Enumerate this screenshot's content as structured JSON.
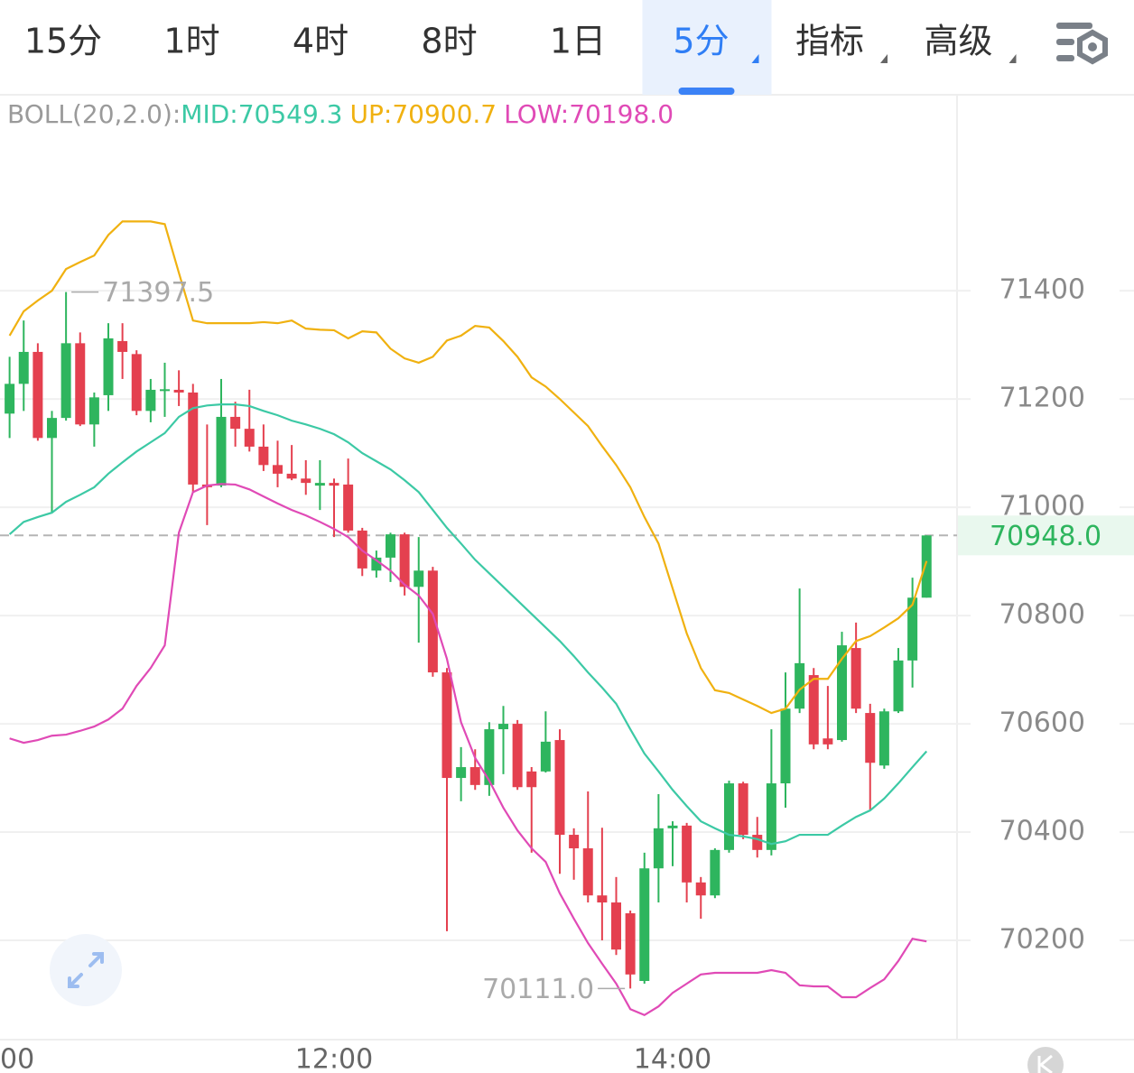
{
  "toolbar": {
    "tabs": [
      {
        "label": "15分",
        "active": false,
        "dropdown": false
      },
      {
        "label": "1时",
        "active": false,
        "dropdown": false
      },
      {
        "label": "4时",
        "active": false,
        "dropdown": false
      },
      {
        "label": "8时",
        "active": false,
        "dropdown": false
      },
      {
        "label": "1日",
        "active": false,
        "dropdown": false
      },
      {
        "label": "5分",
        "active": true,
        "dropdown": true
      },
      {
        "label": "指标",
        "active": false,
        "dropdown": true
      },
      {
        "label": "高级",
        "active": false,
        "dropdown": true
      }
    ]
  },
  "chart_data": {
    "type": "candlestick",
    "indicator": "BOLL(20,2.0):",
    "categories": [
      "00",
      null,
      null,
      null,
      null,
      null,
      null,
      null,
      null,
      null,
      null,
      null,
      null,
      null,
      null,
      null,
      null,
      null,
      null,
      null,
      null,
      null,
      null,
      null,
      "12:00",
      null,
      null,
      null,
      null,
      null,
      null,
      null,
      null,
      null,
      null,
      null,
      null,
      null,
      null,
      null,
      null,
      null,
      null,
      null,
      null,
      null,
      null,
      null,
      "14:00",
      null,
      null,
      null,
      null,
      null,
      null,
      null,
      null,
      null,
      null,
      null,
      null,
      null,
      null,
      null,
      null,
      null,
      null
    ],
    "open": [
      null,
      71173,
      71228,
      71287,
      71128,
      71165,
      71303,
      71153,
      71207,
      71307,
      71283,
      71178,
      71215,
      71217,
      71212,
      71042,
      71040,
      71167,
      71145,
      71112,
      71078,
      71062,
      71053,
      71040,
      71045,
      71042,
      70957,
      70883,
      70907,
      70950,
      70853,
      70883,
      70695,
      70500,
      70520,
      70487,
      70590,
      70600,
      70512,
      70512,
      70570,
      70395,
      70370,
      70283,
      70270,
      70250,
      70125,
      70333,
      70407,
      70412,
      70307,
      70283,
      70367,
      70490,
      70395,
      70367,
      70490,
      70628,
      70690,
      70573,
      70570,
      70740,
      70620,
      70523,
      70623,
      70717,
      70833
    ],
    "high": [
      null,
      71278,
      71345,
      71303,
      71178,
      71397.5,
      71323,
      71212,
      71340,
      71340,
      71290,
      71237,
      71267,
      71253,
      71228,
      71153,
      71237,
      71195,
      71217,
      71153,
      71123,
      71115,
      71087,
      71087,
      71053,
      71090,
      70962,
      70920,
      70953,
      70953,
      70945,
      70890,
      70703,
      70557,
      70553,
      70603,
      70633,
      70607,
      70520,
      70623,
      70590,
      70407,
      70475,
      70408,
      70317,
      70255,
      70362,
      70470,
      70420,
      70417,
      70317,
      70370,
      70495,
      70493,
      70428,
      70590,
      70695,
      70850,
      70703,
      70670,
      70770,
      70787,
      70637,
      70628,
      70740,
      70870,
      70948
    ],
    "low": [
      null,
      71128,
      71178,
      71123,
      70990,
      71160,
      71150,
      71112,
      71178,
      71237,
      71170,
      71157,
      71167,
      71187,
      71028,
      70967,
      71037,
      71112,
      71103,
      71067,
      71037,
      71050,
      71023,
      70995,
      70945,
      70953,
      70873,
      70870,
      70862,
      70837,
      70750,
      70687,
      70217,
      70457,
      70478,
      70467,
      70507,
      70478,
      70362,
      70510,
      70323,
      70312,
      70270,
      70200,
      70173,
      70111,
      70120,
      70270,
      70337,
      70270,
      70240,
      70278,
      70362,
      70387,
      70353,
      70357,
      70445,
      70620,
      70553,
      70553,
      70567,
      70620,
      70440,
      70517,
      70620,
      70667,
      70833
    ],
    "close": [
      null,
      71228,
      71287,
      71128,
      71165,
      71303,
      71153,
      71203,
      71312,
      71287,
      71178,
      71217,
      71218,
      71212,
      71042,
      71037,
      71167,
      71145,
      71112,
      71078,
      71062,
      71053,
      71045,
      71045,
      71040,
      70957,
      70887,
      70907,
      70950,
      70853,
      70883,
      70695,
      70500,
      70520,
      70487,
      70590,
      70600,
      70483,
      70483,
      70567,
      70395,
      70370,
      70283,
      70270,
      70183,
      70137,
      70333,
      70407,
      70412,
      70307,
      70283,
      70367,
      70490,
      70395,
      70367,
      70490,
      70628,
      70712,
      70562,
      70562,
      70745,
      70628,
      70528,
      70623,
      70717,
      70833,
      70948
    ],
    "up_color": "#2eb55e",
    "down_color": "#e4404f",
    "series": [
      {
        "name": "MID",
        "label": "MID:70549.3",
        "color": "#3cc9a5",
        "values": [
          null,
          70950,
          70973,
          70982,
          70990,
          71010,
          71023,
          71037,
          71062,
          71083,
          71103,
          71120,
          71137,
          71167,
          71183,
          71188,
          71190,
          71190,
          71187,
          71178,
          71170,
          71160,
          71153,
          71145,
          71135,
          71120,
          71100,
          71085,
          71070,
          71050,
          71028,
          70995,
          70962,
          70933,
          70903,
          70878,
          70853,
          70828,
          70803,
          70778,
          70753,
          70725,
          70695,
          70667,
          70637,
          70590,
          70545,
          70512,
          70478,
          70448,
          70420,
          70407,
          70395,
          70392,
          70387,
          70378,
          70383,
          70395,
          70395,
          70395,
          70412,
          70428,
          70440,
          70462,
          70490,
          70520,
          70549.3
        ]
      },
      {
        "name": "UP",
        "label": "UP:70900.7",
        "color": "#f0b110",
        "values": [
          null,
          71317,
          71362,
          71382,
          71400,
          71440,
          71453,
          71465,
          71503,
          71528,
          71528,
          71528,
          71523,
          71433,
          71345,
          71340,
          71340,
          71340,
          71340,
          71342,
          71340,
          71345,
          71330,
          71328,
          71327,
          71312,
          71325,
          71323,
          71293,
          71275,
          71267,
          71278,
          71308,
          71317,
          71335,
          71332,
          71307,
          71278,
          71240,
          71223,
          71200,
          71175,
          71150,
          71113,
          71078,
          71037,
          70982,
          70933,
          70850,
          70767,
          70703,
          70662,
          70657,
          70645,
          70633,
          70620,
          70628,
          70663,
          70683,
          70683,
          70720,
          70753,
          70762,
          70778,
          70795,
          70820,
          70900.7
        ]
      },
      {
        "name": "LOW",
        "label": "LOW:70198.0",
        "color": "#e04ab6",
        "values": [
          null,
          70573,
          70565,
          70570,
          70578,
          70580,
          70587,
          70595,
          70608,
          70628,
          70670,
          70703,
          70745,
          70953,
          71028,
          71040,
          71043,
          71042,
          71033,
          71020,
          71007,
          70995,
          70985,
          70973,
          70960,
          70945,
          70920,
          70902,
          70883,
          70857,
          70837,
          70803,
          70720,
          70603,
          70537,
          70495,
          70445,
          70403,
          70370,
          70345,
          70287,
          70240,
          70195,
          70157,
          70120,
          70073,
          70062,
          70078,
          70103,
          70120,
          70137,
          70140,
          70140,
          70140,
          70140,
          70145,
          70140,
          70117,
          70115,
          70115,
          70095,
          70095,
          70112,
          70128,
          70162,
          70203,
          70198.0
        ]
      }
    ],
    "ylim": [
      70020,
      71762
    ],
    "yticks": [
      70200,
      70400,
      70600,
      70800,
      71000,
      71200,
      71400
    ],
    "grid": true,
    "high_marker": 71397.5,
    "low_marker": {
      "value": 70111,
      "label": "70111.0"
    },
    "last_price": {
      "value": 70948,
      "label": "70948.0"
    }
  }
}
